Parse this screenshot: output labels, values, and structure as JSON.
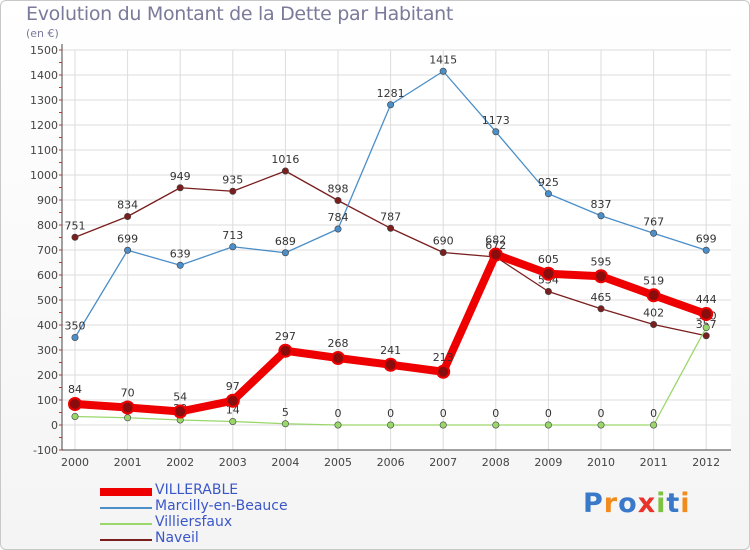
{
  "chart_data": {
    "type": "line",
    "title": "Evolution du Montant de la Dette par Habitant",
    "subtitle": "(en €)",
    "x": [
      "2000",
      "2001",
      "2002",
      "2003",
      "2004",
      "2005",
      "2006",
      "2007",
      "2008",
      "2009",
      "2010",
      "2011",
      "2012"
    ],
    "ylim": [
      -100,
      1500
    ],
    "yticks": [
      -100,
      0,
      100,
      200,
      300,
      400,
      500,
      600,
      700,
      800,
      900,
      1000,
      1100,
      1200,
      1300,
      1400,
      1500
    ],
    "grid": true,
    "legend_position": "bottom-left",
    "series": [
      {
        "name": "Naveil",
        "color": "#7a1e1e",
        "values": [
          751,
          834,
          949,
          935,
          1016,
          898,
          787,
          690,
          672,
          534,
          465,
          402,
          357
        ]
      },
      {
        "name": "Villiersfaux",
        "color": "#9ad76a",
        "values": [
          34,
          29,
          20,
          14,
          5,
          0,
          0,
          0,
          0,
          0,
          0,
          0,
          390
        ]
      },
      {
        "name": "Marcilly-en-Beauce",
        "color": "#4b8ec8",
        "values": [
          350,
          699,
          639,
          713,
          689,
          784,
          1281,
          1415,
          1173,
          925,
          837,
          767,
          699
        ]
      },
      {
        "name": "VILLERABLE",
        "color": "#ee0000",
        "values": [
          84,
          70,
          54,
          97,
          297,
          268,
          241,
          213,
          682,
          605,
          595,
          519,
          444
        ]
      }
    ]
  },
  "legend_order": [
    "VILLERABLE",
    "Marcilly-en-Beauce",
    "Villiersfaux",
    "Naveil"
  ],
  "brand": {
    "text": "Proxiti",
    "letters": [
      "P",
      "r",
      "o",
      "x",
      "i",
      "t",
      "i"
    ],
    "letter_colors": [
      "#3a78c9",
      "#f28b1e",
      "#3a78c9",
      "#e8322a",
      "#7fc241",
      "#3a78c9",
      "#f28b1e"
    ]
  }
}
